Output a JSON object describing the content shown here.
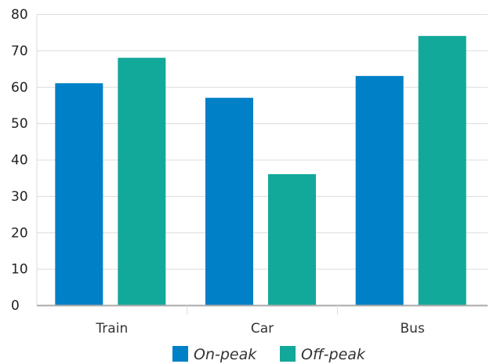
{
  "chart_data": {
    "type": "bar",
    "categories": [
      "Train",
      "Car",
      "Bus"
    ],
    "series": [
      {
        "name": "On-peak",
        "values": [
          61,
          57,
          63
        ],
        "color": "#0080c6"
      },
      {
        "name": "Off-peak",
        "values": [
          68,
          36,
          74
        ],
        "color": "#12a89a"
      }
    ],
    "title": "",
    "xlabel": "",
    "ylabel": "",
    "ylim": [
      0,
      80
    ],
    "yticks": [
      0,
      10,
      20,
      30,
      40,
      50,
      60,
      70,
      80
    ],
    "grid": true,
    "legend": "bottom-center",
    "colors": {
      "grid": "#dcdcdc",
      "axis": "#aaaaaa"
    }
  }
}
